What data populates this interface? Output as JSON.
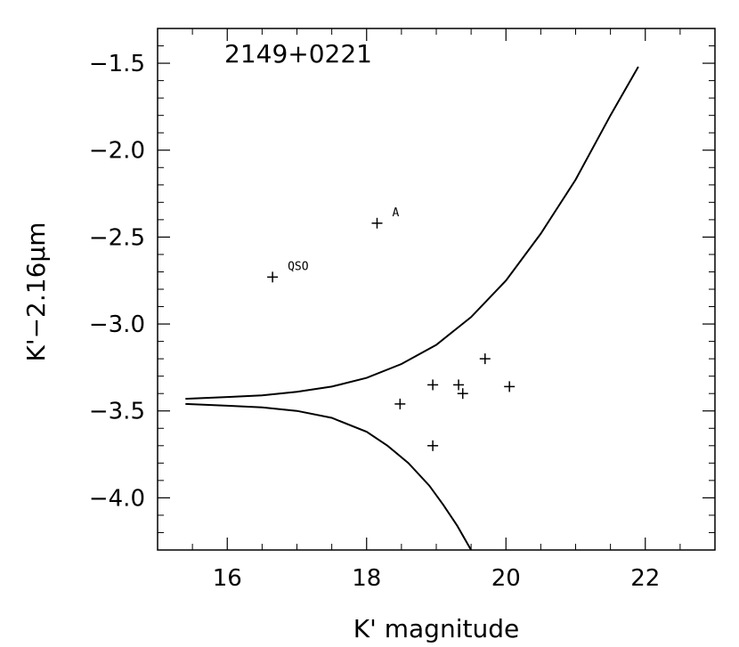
{
  "chart_data": {
    "type": "scatter",
    "title": "2149+0221",
    "xlabel": "K' magnitude",
    "ylabel": "K'−2.16μm",
    "xlim": [
      15.0,
      23.0
    ],
    "ylim": [
      -4.3,
      -1.3
    ],
    "x_ticks": [
      16,
      18,
      20,
      22
    ],
    "x_tick_labels": [
      "16",
      "18",
      "20",
      "22"
    ],
    "y_ticks": [
      -1.5,
      -2.0,
      -2.5,
      -3.0,
      -3.5,
      -4.0
    ],
    "y_tick_labels": [
      "−1.5",
      "−2.0",
      "−2.5",
      "−3.0",
      "−3.5",
      "−4.0"
    ],
    "grid": false,
    "points": [
      {
        "x": 16.65,
        "y": -2.73,
        "label": "QSO"
      },
      {
        "x": 18.15,
        "y": -2.42,
        "label": "A"
      },
      {
        "x": 18.48,
        "y": -3.46,
        "label": ""
      },
      {
        "x": 18.95,
        "y": -3.35,
        "label": ""
      },
      {
        "x": 18.95,
        "y": -3.7,
        "label": ""
      },
      {
        "x": 19.32,
        "y": -3.35,
        "label": ""
      },
      {
        "x": 19.38,
        "y": -3.4,
        "label": ""
      },
      {
        "x": 19.7,
        "y": -3.2,
        "label": ""
      },
      {
        "x": 20.05,
        "y": -3.36,
        "label": ""
      }
    ],
    "curves": [
      {
        "name": "",
        "x": [
          15.4,
          16.0,
          16.5,
          17.0,
          17.5,
          18.0,
          18.5,
          19.0,
          19.5,
          20.0,
          20.5,
          21.0,
          21.5,
          21.9
        ],
        "y": [
          -3.43,
          -3.42,
          -3.41,
          -3.39,
          -3.36,
          -3.31,
          -3.23,
          -3.12,
          -2.96,
          -2.75,
          -2.48,
          -2.17,
          -1.8,
          -1.52
        ]
      },
      {
        "name": "",
        "x": [
          15.4,
          16.0,
          16.5,
          17.0,
          17.5,
          18.0,
          18.3,
          18.6,
          18.9,
          19.1,
          19.3,
          19.5
        ],
        "y": [
          -3.46,
          -3.47,
          -3.48,
          -3.5,
          -3.54,
          -3.62,
          -3.7,
          -3.8,
          -3.93,
          -4.04,
          -4.16,
          -4.3
        ]
      }
    ]
  }
}
